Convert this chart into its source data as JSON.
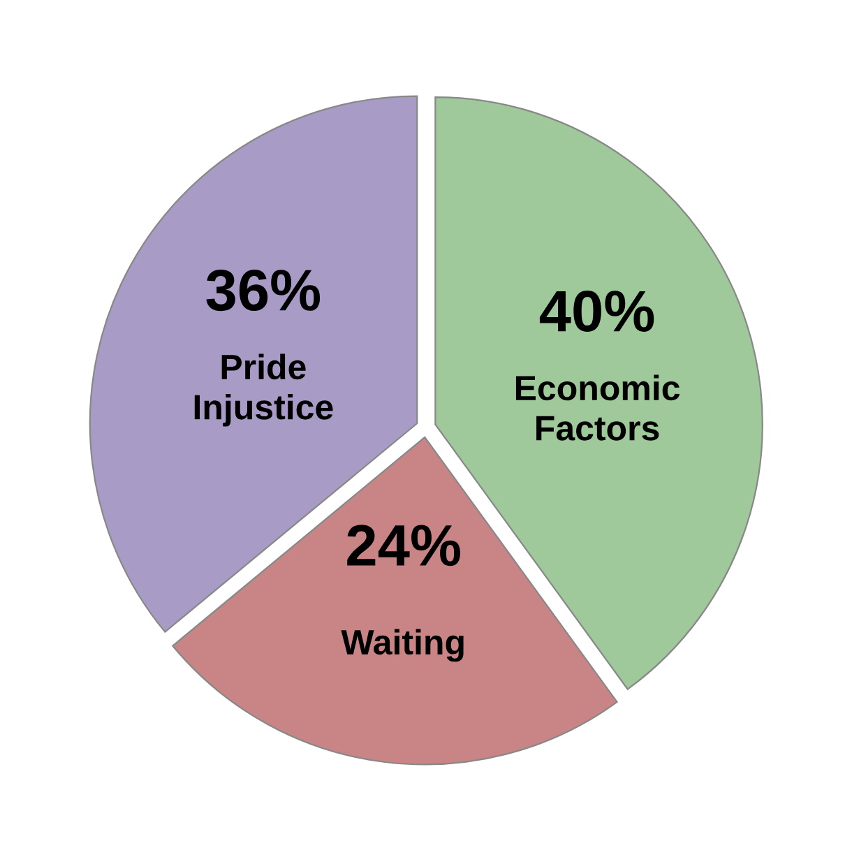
{
  "chart_data": {
    "type": "pie",
    "categories": [
      "Economic\nFactors",
      "Waiting",
      "Pride\nInjustice"
    ],
    "values": [
      40,
      24,
      36
    ],
    "colors": [
      "#9fc99a",
      "#c98586",
      "#a89cc6"
    ],
    "value_labels": [
      "40%",
      "24%",
      "36%"
    ]
  }
}
